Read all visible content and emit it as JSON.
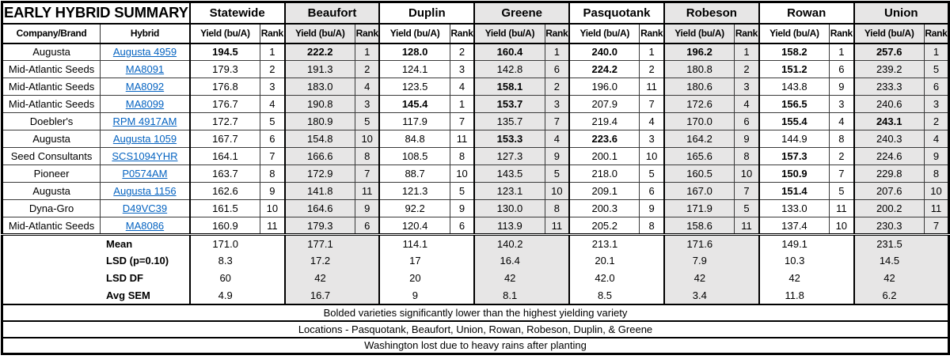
{
  "title": "EARLY HYBRID SUMMARY",
  "columns": {
    "company": "Company/Brand",
    "hybrid": "Hybrid",
    "yield": "Yield (bu/A)",
    "rank": "Rank"
  },
  "groups": [
    {
      "name": "Statewide",
      "shaded": false
    },
    {
      "name": "Beaufort",
      "shaded": true
    },
    {
      "name": "Duplin",
      "shaded": false
    },
    {
      "name": "Greene",
      "shaded": true
    },
    {
      "name": "Pasquotank",
      "shaded": false
    },
    {
      "name": "Robeson",
      "shaded": true
    },
    {
      "name": "Rowan",
      "shaded": false
    },
    {
      "name": "Union",
      "shaded": true
    }
  ],
  "rows": [
    {
      "company": "Augusta",
      "hybrid": "Augusta 4959",
      "cells": [
        [
          "194.5",
          "1",
          1
        ],
        [
          "222.2",
          "1",
          1
        ],
        [
          "128.0",
          "2",
          1
        ],
        [
          "160.4",
          "1",
          1
        ],
        [
          "240.0",
          "1",
          1
        ],
        [
          "196.2",
          "1",
          1
        ],
        [
          "158.2",
          "1",
          1
        ],
        [
          "257.6",
          "1",
          1
        ]
      ]
    },
    {
      "company": "Mid-Atlantic Seeds",
      "hybrid": "MA8091",
      "cells": [
        [
          "179.3",
          "2",
          0
        ],
        [
          "191.3",
          "2",
          0
        ],
        [
          "124.1",
          "3",
          0
        ],
        [
          "142.8",
          "6",
          0
        ],
        [
          "224.2",
          "2",
          1
        ],
        [
          "180.8",
          "2",
          0
        ],
        [
          "151.2",
          "6",
          1
        ],
        [
          "239.2",
          "5",
          0
        ]
      ]
    },
    {
      "company": "Mid-Atlantic Seeds",
      "hybrid": "MA8092",
      "cells": [
        [
          "176.8",
          "3",
          0
        ],
        [
          "183.0",
          "4",
          0
        ],
        [
          "123.5",
          "4",
          0
        ],
        [
          "158.1",
          "2",
          1
        ],
        [
          "196.0",
          "11",
          0
        ],
        [
          "180.6",
          "3",
          0
        ],
        [
          "143.8",
          "9",
          0
        ],
        [
          "233.3",
          "6",
          0
        ]
      ]
    },
    {
      "company": "Mid-Atlantic Seeds",
      "hybrid": "MA8099",
      "cells": [
        [
          "176.7",
          "4",
          0
        ],
        [
          "190.8",
          "3",
          0
        ],
        [
          "145.4",
          "1",
          1
        ],
        [
          "153.7",
          "3",
          1
        ],
        [
          "207.9",
          "7",
          0
        ],
        [
          "172.6",
          "4",
          0
        ],
        [
          "156.5",
          "3",
          1
        ],
        [
          "240.6",
          "3",
          0
        ]
      ]
    },
    {
      "company": "Doebler's",
      "hybrid": "RPM 4917AM",
      "cells": [
        [
          "172.7",
          "5",
          0
        ],
        [
          "180.9",
          "5",
          0
        ],
        [
          "117.9",
          "7",
          0
        ],
        [
          "135.7",
          "7",
          0
        ],
        [
          "219.4",
          "4",
          0
        ],
        [
          "170.0",
          "6",
          0
        ],
        [
          "155.4",
          "4",
          1
        ],
        [
          "243.1",
          "2",
          1
        ]
      ]
    },
    {
      "company": "Augusta",
      "hybrid": "Augusta 1059",
      "cells": [
        [
          "167.7",
          "6",
          0
        ],
        [
          "154.8",
          "10",
          0
        ],
        [
          "84.8",
          "11",
          0
        ],
        [
          "153.3",
          "4",
          1
        ],
        [
          "223.6",
          "3",
          1
        ],
        [
          "164.2",
          "9",
          0
        ],
        [
          "144.9",
          "8",
          0
        ],
        [
          "240.3",
          "4",
          0
        ]
      ]
    },
    {
      "company": "Seed Consultants",
      "hybrid": "SCS1094YHR",
      "cells": [
        [
          "164.1",
          "7",
          0
        ],
        [
          "166.6",
          "8",
          0
        ],
        [
          "108.5",
          "8",
          0
        ],
        [
          "127.3",
          "9",
          0
        ],
        [
          "200.1",
          "10",
          0
        ],
        [
          "165.6",
          "8",
          0
        ],
        [
          "157.3",
          "2",
          1
        ],
        [
          "224.6",
          "9",
          0
        ]
      ]
    },
    {
      "company": "Pioneer",
      "hybrid": "P0574AM",
      "cells": [
        [
          "163.7",
          "8",
          0
        ],
        [
          "172.9",
          "7",
          0
        ],
        [
          "88.7",
          "10",
          0
        ],
        [
          "143.5",
          "5",
          0
        ],
        [
          "218.0",
          "5",
          0
        ],
        [
          "160.5",
          "10",
          0
        ],
        [
          "150.9",
          "7",
          1
        ],
        [
          "229.8",
          "8",
          0
        ]
      ]
    },
    {
      "company": "Augusta",
      "hybrid": "Augusta 1156",
      "cells": [
        [
          "162.6",
          "9",
          0
        ],
        [
          "141.8",
          "11",
          0
        ],
        [
          "121.3",
          "5",
          0
        ],
        [
          "123.1",
          "10",
          0
        ],
        [
          "209.1",
          "6",
          0
        ],
        [
          "167.0",
          "7",
          0
        ],
        [
          "151.4",
          "5",
          1
        ],
        [
          "207.6",
          "10",
          0
        ]
      ]
    },
    {
      "company": "Dyna-Gro",
      "hybrid": "D49VC39",
      "cells": [
        [
          "161.5",
          "10",
          0
        ],
        [
          "164.6",
          "9",
          0
        ],
        [
          "92.2",
          "9",
          0
        ],
        [
          "130.0",
          "8",
          0
        ],
        [
          "200.3",
          "9",
          0
        ],
        [
          "171.9",
          "5",
          0
        ],
        [
          "133.0",
          "11",
          0
        ],
        [
          "200.2",
          "11",
          0
        ]
      ]
    },
    {
      "company": "Mid-Atlantic Seeds",
      "hybrid": "MA8086",
      "cells": [
        [
          "160.9",
          "11",
          0
        ],
        [
          "179.3",
          "6",
          0
        ],
        [
          "120.4",
          "6",
          0
        ],
        [
          "113.9",
          "11",
          0
        ],
        [
          "205.2",
          "8",
          0
        ],
        [
          "158.6",
          "11",
          0
        ],
        [
          "137.4",
          "10",
          0
        ],
        [
          "230.3",
          "7",
          0
        ]
      ]
    }
  ],
  "summary": [
    {
      "label": "Mean",
      "values": [
        "171.0",
        "177.1",
        "114.1",
        "140.2",
        "213.1",
        "171.6",
        "149.1",
        "231.5"
      ]
    },
    {
      "label": "LSD (p=0.10)",
      "values": [
        "8.3",
        "17.2",
        "17",
        "16.4",
        "20.1",
        "7.9",
        "10.3",
        "14.5"
      ]
    },
    {
      "label": "LSD DF",
      "values": [
        "60",
        "42",
        "20",
        "42",
        "42.0",
        "42",
        "42",
        "42"
      ]
    },
    {
      "label": "Avg SEM",
      "values": [
        "4.9",
        "16.7",
        "9",
        "8.1",
        "8.5",
        "3.4",
        "11.8",
        "6.2"
      ]
    }
  ],
  "footnotes": [
    "Bolded varieties significantly lower than the highest yielding variety",
    "Locations - Pasquotank, Beaufort, Union, Rowan, Robeson, Duplin, & Greene",
    "Washington lost due to heavy rains after planting"
  ],
  "colors": {
    "shaded_column": "#e7e6e6",
    "hyperlink": "#0563c1",
    "border": "#000000"
  }
}
